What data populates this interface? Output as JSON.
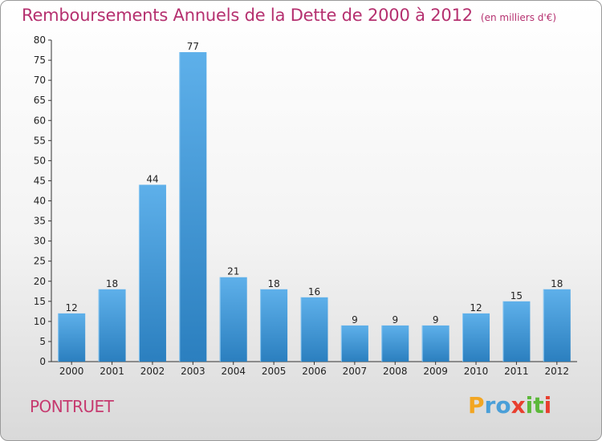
{
  "title": "Remboursements Annuels de la Dette de 2000 à 2012",
  "unit": "(en milliers d'€)",
  "commune": "PONTRUET",
  "logo": {
    "letters": [
      "P",
      "r",
      "o",
      "x",
      "i",
      "t",
      "i"
    ],
    "colors": [
      "#f2a623",
      "#4a9fd8",
      "#4a9fd8",
      "#e83f2f",
      "#5cb83a",
      "#5cb83a",
      "#e83f2f"
    ]
  },
  "chart_data": {
    "type": "bar",
    "categories": [
      "2000",
      "2001",
      "2002",
      "2003",
      "2004",
      "2005",
      "2006",
      "2007",
      "2008",
      "2009",
      "2010",
      "2011",
      "2012"
    ],
    "values": [
      12,
      18,
      44,
      77,
      21,
      18,
      16,
      9,
      9,
      9,
      12,
      15,
      18
    ],
    "ylim": [
      0,
      80
    ],
    "yticks": [
      0,
      5,
      10,
      15,
      20,
      25,
      30,
      35,
      40,
      45,
      50,
      55,
      60,
      65,
      70,
      75,
      80
    ],
    "bar_color_top": "#5eb0ea",
    "bar_color_bottom": "#2b7fbf",
    "grid": false
  }
}
